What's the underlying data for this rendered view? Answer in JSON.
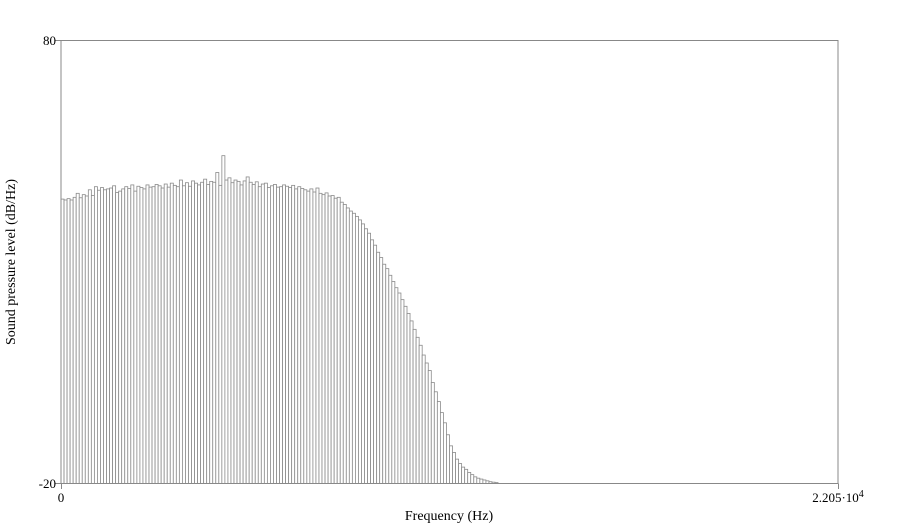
{
  "chart_data": {
    "type": "bar",
    "title": "",
    "xlabel": "Frequency (Hz)",
    "ylabel": "Sound pressure level (dB/Hz)",
    "xlim": [
      0,
      22050
    ],
    "ylim": [
      -20,
      80
    ],
    "x_tick_labels": {
      "min": "0",
      "max_mantissa": "2.205·10",
      "max_exponent": "4"
    },
    "y_tick_labels": {
      "min": "-20",
      "max": "80"
    },
    "grid": false,
    "bin_width_hz": 86.13,
    "values": [
      44.2,
      44.0,
      44.3,
      44.0,
      44.6,
      45.5,
      44.5,
      45.2,
      44.9,
      46.3,
      45.0,
      47.0,
      46.2,
      46.8,
      46.3,
      46.5,
      46.7,
      47.2,
      45.7,
      46.0,
      46.5,
      47.0,
      46.6,
      47.4,
      46.0,
      47.1,
      46.8,
      46.5,
      47.4,
      46.9,
      47.0,
      47.5,
      47.2,
      46.7,
      47.6,
      46.9,
      47.8,
      47.3,
      47.0,
      48.5,
      47.2,
      47.9,
      47.1,
      48.3,
      47.8,
      47.4,
      48.0,
      48.7,
      47.5,
      48.2,
      48.0,
      50.2,
      47.3,
      54.0,
      48.5,
      49.0,
      47.9,
      48.5,
      48.2,
      47.4,
      48.3,
      49.2,
      48.0,
      47.5,
      48.1,
      47.0,
      47.6,
      47.8,
      46.8,
      47.2,
      47.5,
      46.9,
      47.0,
      47.4,
      47.1,
      46.8,
      47.3,
      46.5,
      47.0,
      46.6,
      46.3,
      46.0,
      46.5,
      45.8,
      46.7,
      45.5,
      45.2,
      45.6,
      44.9,
      45.0,
      44.4,
      44.6,
      43.5,
      43.0,
      42.2,
      41.5,
      41.0,
      40.3,
      39.5,
      38.6,
      37.5,
      36.5,
      35.0,
      33.8,
      32.2,
      31.0,
      29.5,
      28.5,
      27.0,
      25.6,
      24.2,
      23.0,
      21.5,
      20.0,
      18.4,
      16.7,
      14.8,
      13.0,
      11.2,
      9.0,
      7.2,
      5.5,
      2.8,
      0.7,
      -1.5,
      -4.0,
      -6.3,
      -9.0,
      -11.5,
      -13.0,
      -14.5,
      -15.5,
      -16.3,
      -16.8,
      -17.5,
      -18.0,
      -18.5,
      -18.8,
      -19.0,
      -19.2,
      -19.4,
      -19.6,
      -19.7,
      -19.8
    ]
  }
}
